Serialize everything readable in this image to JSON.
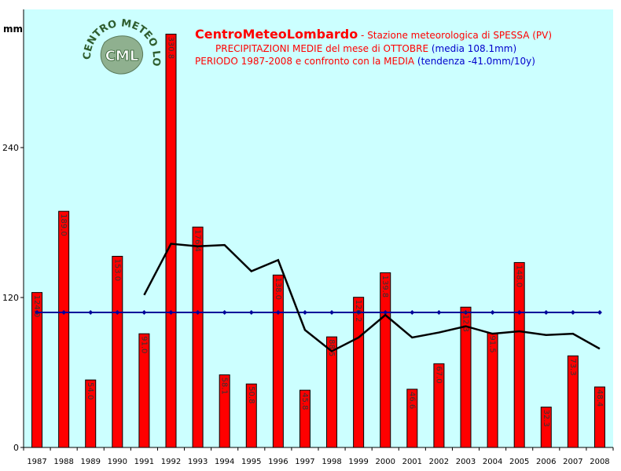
{
  "header": {
    "line1_brand": "CentroMeteoLombardo",
    "line1_station": " - Stazione meteorologica di SPESSA (PV)",
    "line2_main": "PRECIPITAZIONI MEDIE del mese di OTTOBRE ",
    "line2_avg": "(media 108.1mm)",
    "line3_main": "PERIODO 1987-2008 e confronto con la MEDIA  ",
    "line3_trend": "(tendenza -41.0mm/10y)"
  },
  "logo": {
    "ring_text": "CENTRO METEO LOMBARDO",
    "center_text": "CML"
  },
  "colors": {
    "bar": "#ff0000",
    "mean_line": "#000099",
    "moving_avg": "#000000",
    "plot_bg": "#ccffff"
  },
  "chart_data": {
    "type": "bar",
    "ylabel": "mm",
    "ylim": [
      0,
      350
    ],
    "yticks": [
      0,
      120,
      240
    ],
    "categories": [
      "1987",
      "1988",
      "1989",
      "1990",
      "1991",
      "1992",
      "1993",
      "1994",
      "1995",
      "1996",
      "1997",
      "1998",
      "1999",
      "2000",
      "2001",
      "2002",
      "2003",
      "2004",
      "2005",
      "2006",
      "2007",
      "2008"
    ],
    "series": [
      {
        "type": "bar",
        "values": [
          124.0,
          189.0,
          54.0,
          153.0,
          91.0,
          330.8,
          176.4,
          58.1,
          50.8,
          138.0,
          45.8,
          88.5,
          120.2,
          139.8,
          46.6,
          67.0,
          112.3,
          91.5,
          148.0,
          32.3,
          73.3,
          48.4
        ]
      },
      {
        "type": "line",
        "values": [
          108.1,
          108.1,
          108.1,
          108.1,
          108.1,
          108.1,
          108.1,
          108.1,
          108.1,
          108.1,
          108.1,
          108.1,
          108.1,
          108.1,
          108.1,
          108.1,
          108.1,
          108.1,
          108.1,
          108.1,
          108.1,
          108.1
        ]
      },
      {
        "type": "line",
        "values": [
          null,
          null,
          null,
          null,
          122,
          163,
          161,
          162,
          141,
          150,
          94,
          77,
          88,
          106,
          88,
          92,
          97,
          91,
          93,
          90,
          91,
          79
        ]
      }
    ],
    "bar_labels": [
      "124.0",
      "189.0",
      "54.0",
      "153.0",
      "91.0",
      "330.8",
      "176.4",
      "58.1",
      "50.8",
      "138.0",
      "45.8",
      "88.5",
      "120.2",
      "139.8",
      "46.6",
      "67.0",
      "112.3",
      "91.5",
      "148.0",
      "32.3",
      "73.3",
      "48.4"
    ]
  }
}
